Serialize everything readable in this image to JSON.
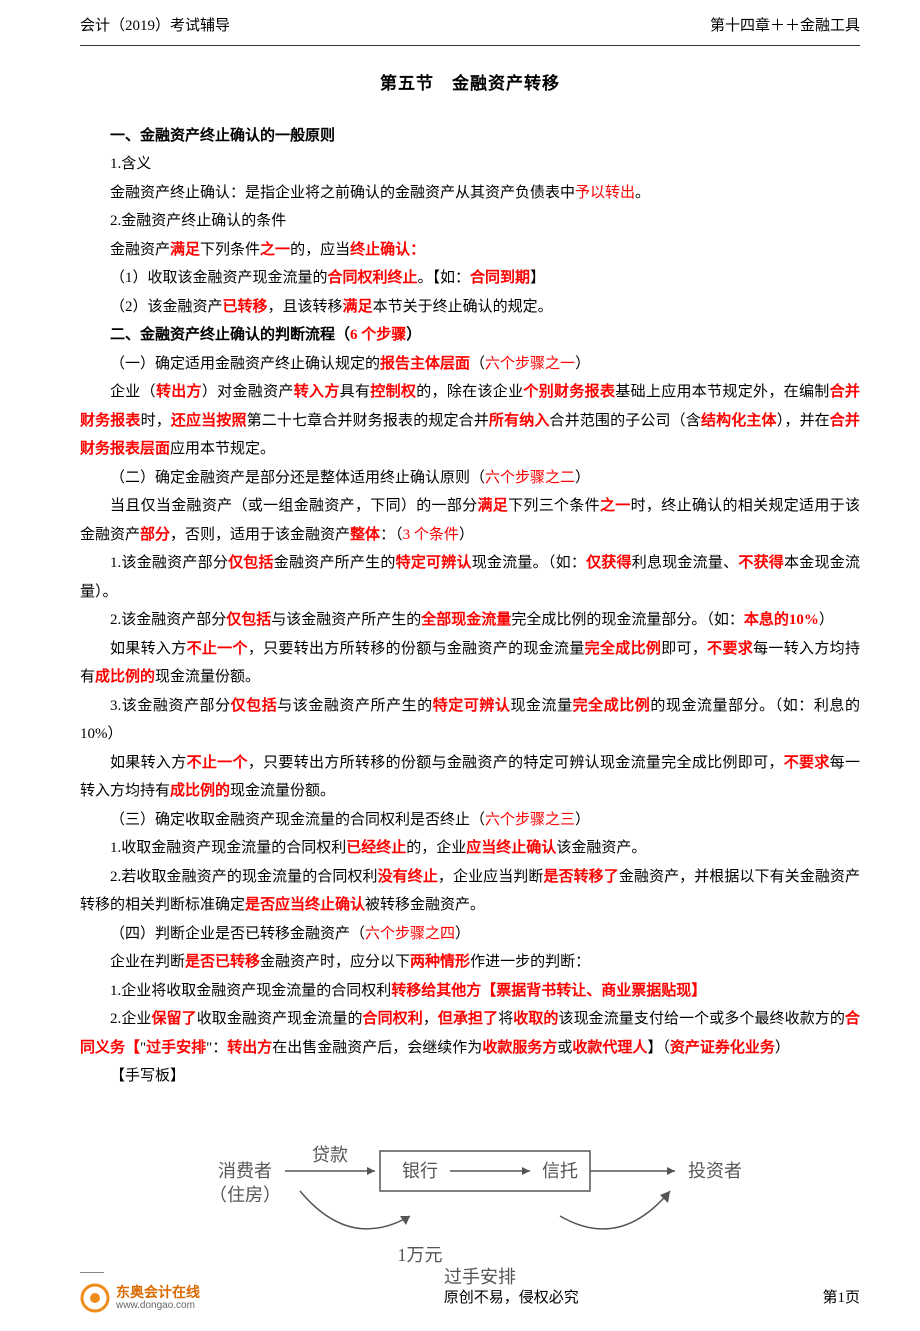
{
  "header": {
    "left": "会计（2019）考试辅导",
    "right": "第十四章＋＋金融工具"
  },
  "section_title": "第五节　金融资产转移",
  "paragraphs": [
    {
      "cls": "bold indent1",
      "runs": [
        {
          "t": "一、金融资产终止确认的一般原则"
        }
      ]
    },
    {
      "cls": "indent1",
      "runs": [
        {
          "t": "1.含义"
        }
      ]
    },
    {
      "cls": "indent1",
      "runs": [
        {
          "t": "金融资产终止确认：是指企业将之前确认的金融资产从其资产负债表中"
        },
        {
          "t": "予以转出",
          "c": "red"
        },
        {
          "t": "。"
        }
      ]
    },
    {
      "cls": "indent1",
      "runs": [
        {
          "t": "2.金融资产终止确认的条件"
        }
      ]
    },
    {
      "cls": "indent1",
      "runs": [
        {
          "t": "金融资产"
        },
        {
          "t": "满足",
          "c": "red bold"
        },
        {
          "t": "下列条件"
        },
        {
          "t": "之一",
          "c": "red bold"
        },
        {
          "t": "的，应当"
        },
        {
          "t": "终止确认：",
          "c": "red bold"
        }
      ]
    },
    {
      "cls": "indent1",
      "runs": [
        {
          "t": "（1）收取该金融资产现金流量的"
        },
        {
          "t": "合同权利终止",
          "c": "red bold"
        },
        {
          "t": "。【如："
        },
        {
          "t": "合同到期",
          "c": "red bold"
        },
        {
          "t": "】"
        }
      ]
    },
    {
      "cls": "indent1",
      "runs": [
        {
          "t": "（2）该金融资产"
        },
        {
          "t": "已转移",
          "c": "red bold"
        },
        {
          "t": "，且该转移"
        },
        {
          "t": "满足",
          "c": "red bold"
        },
        {
          "t": "本节关于终止确认的规定。"
        }
      ]
    },
    {
      "cls": "bold indent1",
      "runs": [
        {
          "t": "二、金融资产终止确认的判断流程（"
        },
        {
          "t": "6 个步骤",
          "c": "red"
        },
        {
          "t": "）"
        }
      ]
    },
    {
      "cls": "indent1",
      "runs": [
        {
          "t": "（一）确定适用金融资产终止确认规定的"
        },
        {
          "t": "报告主体层面",
          "c": "red bold"
        },
        {
          "t": "（"
        },
        {
          "t": "六个步骤之一",
          "c": "red"
        },
        {
          "t": "）"
        }
      ]
    },
    {
      "cls": "indent1",
      "runs": [
        {
          "t": "企业（"
        },
        {
          "t": "转出方",
          "c": "red bold"
        },
        {
          "t": "）对金融资产"
        },
        {
          "t": "转入方",
          "c": "red bold"
        },
        {
          "t": "具有"
        },
        {
          "t": "控制权",
          "c": "red bold"
        },
        {
          "t": "的，除在该企业"
        },
        {
          "t": "个别财务报表",
          "c": "red bold"
        },
        {
          "t": "基础上应用本节规定外，在编制"
        },
        {
          "t": "合并财务报表",
          "c": "red bold"
        },
        {
          "t": "时，"
        },
        {
          "t": "还应当按照",
          "c": "red bold"
        },
        {
          "t": "第二十七章合并财务报表的规定合并"
        },
        {
          "t": "所有纳入",
          "c": "red bold"
        },
        {
          "t": "合并范围的子公司（含"
        },
        {
          "t": "结构化主体",
          "c": "red bold"
        },
        {
          "t": "），并在"
        },
        {
          "t": "合并财务报表层面",
          "c": "red bold"
        },
        {
          "t": "应用本节规定。"
        }
      ]
    },
    {
      "cls": "indent1",
      "runs": [
        {
          "t": "（二）确定金融资产是部分还是整体适用终止确认原则（"
        },
        {
          "t": "六个步骤之二",
          "c": "red"
        },
        {
          "t": "）"
        }
      ]
    },
    {
      "cls": "indent1",
      "runs": [
        {
          "t": "当且仅当金融资产（或一组金融资产，下同）的一部分"
        },
        {
          "t": "满足",
          "c": "red bold"
        },
        {
          "t": "下列三个条件"
        },
        {
          "t": "之一",
          "c": "red bold"
        },
        {
          "t": "时，终止确认的相关规定适用于该金融资产"
        },
        {
          "t": "部分",
          "c": "red bold"
        },
        {
          "t": "，否则，适用于该金融资产"
        },
        {
          "t": "整体",
          "c": "red bold"
        },
        {
          "t": "：（"
        },
        {
          "t": "3 个条件",
          "c": "red"
        },
        {
          "t": "）"
        }
      ]
    },
    {
      "cls": "indent1",
      "runs": [
        {
          "t": "1.该金融资产部分"
        },
        {
          "t": "仅包括",
          "c": "red bold"
        },
        {
          "t": "金融资产所产生的"
        },
        {
          "t": "特定可辨认",
          "c": "red bold"
        },
        {
          "t": "现金流量。（如："
        },
        {
          "t": "仅获得",
          "c": "red bold"
        },
        {
          "t": "利息现金流量、"
        },
        {
          "t": "不获得",
          "c": "red bold"
        },
        {
          "t": "本金现金流量）。"
        }
      ]
    },
    {
      "cls": "indent1",
      "runs": [
        {
          "t": "2.该金融资产部分"
        },
        {
          "t": "仅包括",
          "c": "red bold"
        },
        {
          "t": "与该金融资产所产生的"
        },
        {
          "t": "全部现金流量",
          "c": "red bold"
        },
        {
          "t": "完全成比例的现金流量部分。（如："
        },
        {
          "t": "本息的10%",
          "c": "red bold"
        },
        {
          "t": "）"
        }
      ]
    },
    {
      "cls": "indent1",
      "runs": [
        {
          "t": "如果转入方"
        },
        {
          "t": "不止一个",
          "c": "red bold"
        },
        {
          "t": "，只要转出方所转移的份额与金融资产的现金流量"
        },
        {
          "t": "完全成比例",
          "c": "red bold"
        },
        {
          "t": "即可，"
        },
        {
          "t": "不要求",
          "c": "red bold"
        },
        {
          "t": "每一转入方均持有"
        },
        {
          "t": "成比例的",
          "c": "red bold"
        },
        {
          "t": "现金流量份额。"
        }
      ]
    },
    {
      "cls": "indent1",
      "runs": [
        {
          "t": "3.该金融资产部分"
        },
        {
          "t": "仅包括",
          "c": "red bold"
        },
        {
          "t": "与该金融资产所产生的"
        },
        {
          "t": "特定可辨认",
          "c": "red bold"
        },
        {
          "t": "现金流量"
        },
        {
          "t": "完全成比例",
          "c": "red bold"
        },
        {
          "t": "的现金流量部分。（如：利息的 10%）"
        }
      ]
    },
    {
      "cls": "indent1",
      "runs": [
        {
          "t": "如果转入方"
        },
        {
          "t": "不止一个",
          "c": "red bold"
        },
        {
          "t": "，只要转出方所转移的份额与金融资产的特定可辨认现金流量完全成比例即可，"
        },
        {
          "t": "不要求",
          "c": "red bold"
        },
        {
          "t": "每一转入方均持有"
        },
        {
          "t": "成比例的",
          "c": "red bold"
        },
        {
          "t": "现金流量份额。"
        }
      ]
    },
    {
      "cls": "indent1",
      "runs": [
        {
          "t": "（三）确定收取金融资产现金流量的合同权利是否终止（"
        },
        {
          "t": "六个步骤之三",
          "c": "red"
        },
        {
          "t": "）"
        }
      ]
    },
    {
      "cls": "indent1",
      "runs": [
        {
          "t": "1.收取金融资产现金流量的合同权利"
        },
        {
          "t": "已经终止",
          "c": "red bold"
        },
        {
          "t": "的，企业"
        },
        {
          "t": "应当终止确认",
          "c": "red bold"
        },
        {
          "t": "该金融资产。"
        }
      ]
    },
    {
      "cls": "indent1",
      "runs": [
        {
          "t": "2.若收取金融资产的现金流量的合同权利"
        },
        {
          "t": "没有终止",
          "c": "red bold"
        },
        {
          "t": "，企业应当判断"
        },
        {
          "t": "是否转移了",
          "c": "red bold"
        },
        {
          "t": "金融资产，并根据以下有关金融资产转移的相关判断标准确定"
        },
        {
          "t": "是否应当终止确认",
          "c": "red bold"
        },
        {
          "t": "被转移金融资产。"
        }
      ]
    },
    {
      "cls": "indent1",
      "runs": [
        {
          "t": "（四）判断企业是否已转移金融资产（"
        },
        {
          "t": "六个步骤之四",
          "c": "red"
        },
        {
          "t": "）"
        }
      ]
    },
    {
      "cls": "indent1",
      "runs": [
        {
          "t": "企业在判断"
        },
        {
          "t": "是否已转移",
          "c": "red bold"
        },
        {
          "t": "金融资产时，应分以下"
        },
        {
          "t": "两种情形",
          "c": "red bold"
        },
        {
          "t": "作进一步的判断："
        }
      ]
    },
    {
      "cls": "indent1",
      "runs": [
        {
          "t": "1.企业将收取金融资产现金流量的合同权利"
        },
        {
          "t": "转移给其他方【票据背书转让、商业票据贴现】",
          "c": "red bold"
        }
      ]
    },
    {
      "cls": "indent1",
      "runs": [
        {
          "t": "2.企业"
        },
        {
          "t": "保留了",
          "c": "red bold"
        },
        {
          "t": "收取金融资产现金流量的"
        },
        {
          "t": "合同权利",
          "c": "red bold"
        },
        {
          "t": "，"
        },
        {
          "t": "但承担了",
          "c": "red bold"
        },
        {
          "t": "将"
        },
        {
          "t": "收取的",
          "c": "red bold"
        },
        {
          "t": "该现金流量支付给一个或多个最终收款方的"
        },
        {
          "t": "合同义务【",
          "c": "red bold"
        },
        {
          "t": "\"",
          "c": ""
        },
        {
          "t": "过手安排",
          "c": "red bold"
        },
        {
          "t": "\"：",
          "c": ""
        },
        {
          "t": "转出方",
          "c": "red bold"
        },
        {
          "t": "在出售金融资产后，会继续作为"
        },
        {
          "t": "收款服务方",
          "c": "red bold"
        },
        {
          "t": "或"
        },
        {
          "t": "收款代理人",
          "c": "red bold"
        },
        {
          "t": "】（"
        },
        {
          "t": "资产证券化业务",
          "c": "red bold"
        },
        {
          "t": "）"
        }
      ]
    },
    {
      "cls": "indent1",
      "runs": [
        {
          "t": "【手写板】"
        }
      ]
    }
  ],
  "diagram": {
    "consumer": "消费者",
    "consumer_sub": "（住房）",
    "loan": "贷款",
    "bank": "银行",
    "trust": "信托",
    "investor": "投资者",
    "amount": "1万元",
    "arrangement": "过手安排",
    "box_stroke": "#555555",
    "text_color": "#555555",
    "font_family": "KaiTi, STKaiti, serif"
  },
  "footer": {
    "brand": "东奥会计在线",
    "url": "www.dongao.com",
    "center": "原创不易，侵权必究",
    "page": "第1页",
    "logo_color": "#f08c1a"
  }
}
